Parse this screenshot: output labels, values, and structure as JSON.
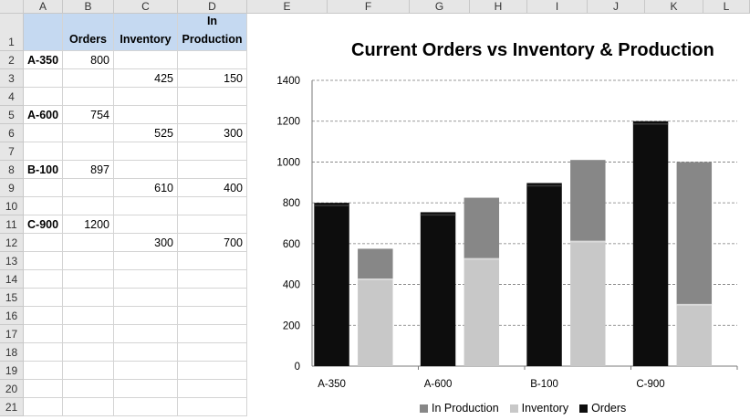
{
  "spreadsheet": {
    "columns": [
      "A",
      "B",
      "C",
      "D",
      "E",
      "F",
      "G",
      "H",
      "I",
      "J",
      "K",
      "L"
    ],
    "rows": [
      "1",
      "2",
      "3",
      "4",
      "5",
      "6",
      "7",
      "8",
      "9",
      "10",
      "11",
      "12",
      "13",
      "14",
      "15",
      "16",
      "17",
      "18",
      "19",
      "20",
      "21"
    ],
    "headers": {
      "orders": "Orders",
      "inventory": "Inventory",
      "in_production_line1": "In",
      "in_production_line2": "Production"
    },
    "cells": {
      "a2": "A-350",
      "b2": "800",
      "c3": "425",
      "d3": "150",
      "a5": "A-600",
      "b5": "754",
      "c6": "525",
      "d6": "300",
      "a8": "B-100",
      "b8": "897",
      "c9": "610",
      "d9": "400",
      "a11": "C-900",
      "b11": "1200",
      "c12": "300",
      "d12": "700"
    }
  },
  "chart_data": {
    "type": "bar",
    "title": "Current Orders vs Inventory & Production",
    "categories": [
      "A-350",
      "A-600",
      "B-100",
      "C-900"
    ],
    "series": [
      {
        "name": "Orders",
        "values": [
          800,
          754,
          897,
          1200
        ],
        "color": "#0d0d0d"
      },
      {
        "name": "Inventory",
        "values": [
          425,
          525,
          610,
          300
        ],
        "color": "#c8c8c8"
      },
      {
        "name": "In Production",
        "values": [
          150,
          300,
          400,
          700
        ],
        "color": "#878787"
      }
    ],
    "stacked_groups": [
      [
        "Orders"
      ],
      [
        "Inventory",
        "In Production"
      ]
    ],
    "ylim": [
      0,
      1400
    ],
    "yticks": [
      "0",
      "200",
      "400",
      "600",
      "800",
      "1000",
      "1200",
      "1400"
    ],
    "grid": true,
    "legend_position": "bottom",
    "legend": [
      "In Production",
      "Inventory",
      "Orders"
    ]
  }
}
